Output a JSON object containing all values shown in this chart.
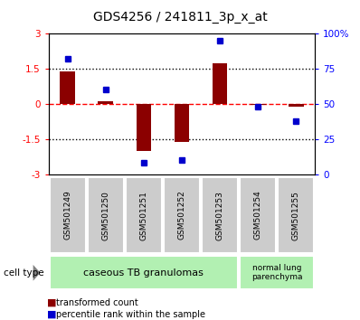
{
  "title": "GDS4256 / 241811_3p_x_at",
  "samples": [
    "GSM501249",
    "GSM501250",
    "GSM501251",
    "GSM501252",
    "GSM501253",
    "GSM501254",
    "GSM501255"
  ],
  "bar_values": [
    1.4,
    0.1,
    -2.0,
    -1.6,
    1.75,
    -0.05,
    -0.1
  ],
  "dot_values_pct": [
    82,
    60,
    8,
    10,
    95,
    48,
    38
  ],
  "ylim_left": [
    -3,
    3
  ],
  "ylim_right": [
    0,
    100
  ],
  "yticks_left": [
    -3,
    -1.5,
    0,
    1.5,
    3
  ],
  "ytick_labels_left": [
    "-3",
    "-1.5",
    "0",
    "1.5",
    "3"
  ],
  "yticks_right": [
    0,
    25,
    50,
    75,
    100
  ],
  "ytick_labels_right": [
    "0",
    "25",
    "50",
    "75",
    "100%"
  ],
  "bar_color": "#8B0000",
  "dot_color": "#0000CD",
  "group1_label": "caseous TB granulomas",
  "group1_color": "#b2f0b2",
  "group2_label": "normal lung\nparenchyma",
  "group2_color": "#b2f0b2",
  "legend_bar_label": "transformed count",
  "legend_dot_label": "percentile rank within the sample",
  "cell_type_label": "cell type",
  "background_color": "#ffffff",
  "plot_bg_color": "#ffffff",
  "tick_label_bg": "#cccccc"
}
